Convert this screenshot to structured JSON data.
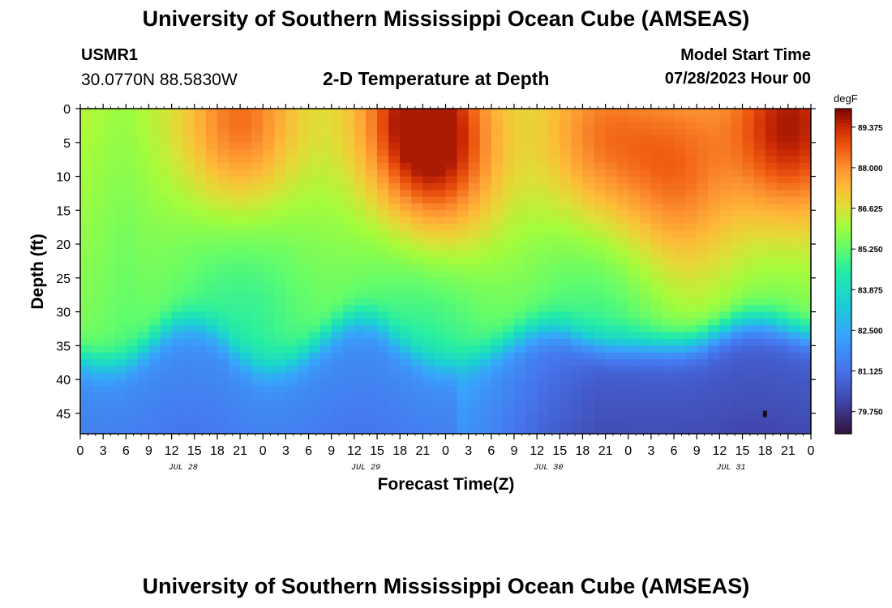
{
  "title_top": "University of Southern Mississippi Ocean Cube (AMSEAS)",
  "title_bottom": "University of Southern Mississippi Ocean Cube (AMSEAS)",
  "station": {
    "id": "USMR1",
    "coords": "30.0770N  88.5830W"
  },
  "model": {
    "start_label": "Model Start Time",
    "start_value": "07/28/2023 Hour 00"
  },
  "chart_data": {
    "type": "heatmap",
    "title": "2-D Temperature at Depth",
    "xlabel": "Forecast Time(Z)",
    "ylabel": "Depth (ft)",
    "units": "degF",
    "x_range_hours": [
      0,
      96
    ],
    "y_range_ft": [
      0,
      48
    ],
    "y_ticks": [
      "0",
      "5",
      "10",
      "15",
      "20",
      "25",
      "30",
      "35",
      "40",
      "45"
    ],
    "x_tick_labels": [
      "0",
      "3",
      "6",
      "9",
      "12",
      "15",
      "18",
      "21",
      "0",
      "3",
      "6",
      "9",
      "12",
      "15",
      "18",
      "21",
      "0",
      "3",
      "6",
      "9",
      "12",
      "15",
      "18",
      "21",
      "0",
      "3",
      "6",
      "9",
      "12",
      "15",
      "18",
      "21",
      "0"
    ],
    "day_labels": [
      "JUL 28",
      "JUL 29",
      "JUL 30",
      "JUL 31"
    ],
    "colorbar": {
      "min": 79.0,
      "max": 90.0,
      "ticks": [
        "89.375",
        "88.000",
        "86.625",
        "85.250",
        "83.875",
        "82.500",
        "81.125",
        "79.750"
      ]
    },
    "thermocline_depth_ft": [
      {
        "hour": 0,
        "depth": 37
      },
      {
        "hour": 3,
        "depth": 38
      },
      {
        "hour": 6,
        "depth": 37.5
      },
      {
        "hour": 9,
        "depth": 35
      },
      {
        "hour": 12,
        "depth": 32
      },
      {
        "hour": 15,
        "depth": 31.5
      },
      {
        "hour": 18,
        "depth": 33
      },
      {
        "hour": 21,
        "depth": 36.5
      },
      {
        "hour": 24,
        "depth": 38.5
      },
      {
        "hour": 27,
        "depth": 38
      },
      {
        "hour": 30,
        "depth": 36
      },
      {
        "hour": 33,
        "depth": 33
      },
      {
        "hour": 36,
        "depth": 31
      },
      {
        "hour": 39,
        "depth": 31.5
      },
      {
        "hour": 42,
        "depth": 34.5
      },
      {
        "hour": 45,
        "depth": 37
      },
      {
        "hour": 48,
        "depth": 38
      },
      {
        "hour": 51,
        "depth": 37.5
      },
      {
        "hour": 54,
        "depth": 36
      },
      {
        "hour": 57,
        "depth": 34
      },
      {
        "hour": 60,
        "depth": 32.5
      },
      {
        "hour": 63,
        "depth": 32.5
      },
      {
        "hour": 66,
        "depth": 34
      },
      {
        "hour": 69,
        "depth": 35
      },
      {
        "hour": 72,
        "depth": 35
      },
      {
        "hour": 75,
        "depth": 35
      },
      {
        "hour": 78,
        "depth": 35
      },
      {
        "hour": 81,
        "depth": 34.5
      },
      {
        "hour": 84,
        "depth": 33
      },
      {
        "hour": 87,
        "depth": 31.5
      },
      {
        "hour": 90,
        "depth": 31.5
      },
      {
        "hour": 93,
        "depth": 32.5
      },
      {
        "hour": 96,
        "depth": 33.5
      }
    ],
    "warm_events": [
      {
        "hour": 21,
        "depth": 2,
        "temp": 88.8
      },
      {
        "hour": 44,
        "depth": 1,
        "temp": 89.3
      },
      {
        "hour": 48,
        "depth": 8,
        "temp": 88.0
      },
      {
        "hour": 68,
        "depth": 4,
        "temp": 88.3
      },
      {
        "hour": 78,
        "depth": 10,
        "temp": 87.6
      },
      {
        "hour": 93,
        "depth": 3,
        "temp": 89.2
      }
    ]
  }
}
